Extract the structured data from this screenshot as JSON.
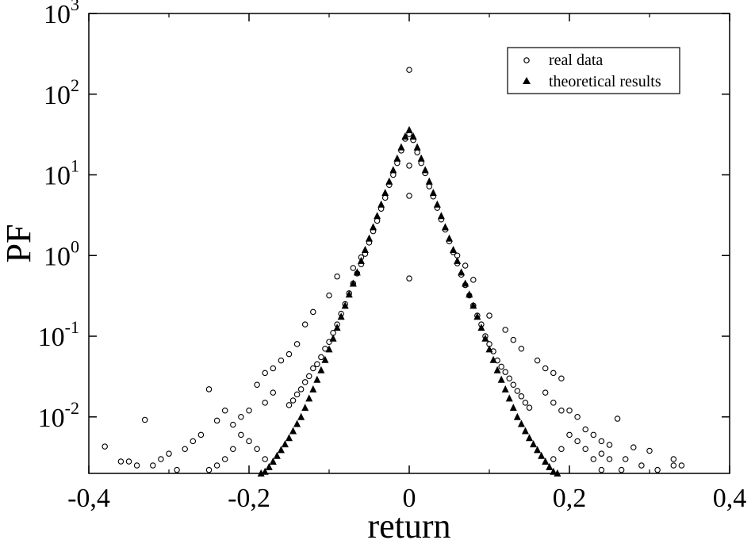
{
  "chart_data": {
    "type": "scatter",
    "xlabel": "return",
    "ylabel": "PF",
    "xlim": [
      -0.4,
      0.4
    ],
    "ylim_log10": [
      -2.7,
      3
    ],
    "y_scale": "log",
    "x_ticks": [
      "-0,4",
      "-0,2",
      "0",
      "0,2",
      "0,4"
    ],
    "y_ticks": [
      {
        "base": "10",
        "exp": "-2"
      },
      {
        "base": "10",
        "exp": "-1"
      },
      {
        "base": "10",
        "exp": "0"
      },
      {
        "base": "10",
        "exp": "1"
      },
      {
        "base": "10",
        "exp": "2"
      },
      {
        "base": "10",
        "exp": "3"
      }
    ],
    "legend_position": "top-right",
    "series": [
      {
        "name": "real data",
        "marker": "open-circle",
        "points": [
          [
            0.0,
            200
          ],
          [
            0.0,
            32
          ],
          [
            0.0,
            13
          ],
          [
            0.0,
            5.5
          ],
          [
            0.0,
            0.52
          ],
          [
            -0.005,
            28
          ],
          [
            0.005,
            27
          ],
          [
            -0.01,
            20
          ],
          [
            0.01,
            19
          ],
          [
            -0.015,
            14
          ],
          [
            0.015,
            14
          ],
          [
            -0.02,
            10
          ],
          [
            0.02,
            10.5
          ],
          [
            -0.025,
            7.5
          ],
          [
            0.025,
            7.2
          ],
          [
            -0.03,
            5.2
          ],
          [
            0.03,
            5.4
          ],
          [
            -0.035,
            3.8
          ],
          [
            0.035,
            3.9
          ],
          [
            -0.04,
            2.7
          ],
          [
            0.04,
            2.8
          ],
          [
            -0.045,
            2.0
          ],
          [
            0.045,
            2.1
          ],
          [
            -0.05,
            1.45
          ],
          [
            0.05,
            1.5
          ],
          [
            -0.055,
            1.05
          ],
          [
            0.055,
            1.1
          ],
          [
            -0.06,
            0.78
          ],
          [
            0.06,
            0.8
          ],
          [
            -0.065,
            0.6
          ],
          [
            0.065,
            0.58
          ],
          [
            -0.07,
            0.45
          ],
          [
            0.07,
            0.43
          ],
          [
            -0.075,
            0.34
          ],
          [
            0.075,
            0.32
          ],
          [
            -0.08,
            0.25
          ],
          [
            0.08,
            0.24
          ],
          [
            -0.085,
            0.19
          ],
          [
            0.085,
            0.18
          ],
          [
            -0.09,
            0.14
          ],
          [
            0.09,
            0.14
          ],
          [
            -0.095,
            0.11
          ],
          [
            0.095,
            0.1
          ],
          [
            -0.1,
            0.085
          ],
          [
            0.1,
            0.08
          ],
          [
            -0.105,
            0.07
          ],
          [
            0.105,
            0.065
          ],
          [
            -0.11,
            0.055
          ],
          [
            0.11,
            0.05
          ],
          [
            -0.115,
            0.045
          ],
          [
            0.115,
            0.042
          ],
          [
            -0.12,
            0.04
          ],
          [
            0.12,
            0.036
          ],
          [
            -0.125,
            0.032
          ],
          [
            0.125,
            0.03
          ],
          [
            -0.13,
            0.027
          ],
          [
            0.13,
            0.025
          ],
          [
            -0.135,
            0.022
          ],
          [
            0.135,
            0.021
          ],
          [
            -0.14,
            0.019
          ],
          [
            0.14,
            0.018
          ],
          [
            -0.145,
            0.016
          ],
          [
            0.145,
            0.015
          ],
          [
            -0.15,
            0.014
          ],
          [
            0.15,
            0.013
          ],
          [
            -0.09,
            0.55
          ],
          [
            -0.1,
            0.32
          ],
          [
            -0.12,
            0.2
          ],
          [
            -0.13,
            0.14
          ],
          [
            -0.06,
            0.95
          ],
          [
            -0.07,
            0.7
          ],
          [
            0.08,
            0.5
          ],
          [
            0.1,
            0.18
          ],
          [
            0.12,
            0.12
          ],
          [
            0.13,
            0.09
          ],
          [
            0.07,
            0.75
          ],
          [
            0.06,
            1.0
          ],
          [
            -0.14,
            0.08
          ],
          [
            -0.16,
            0.05
          ],
          [
            -0.17,
            0.04
          ],
          [
            -0.15,
            0.06
          ],
          [
            0.14,
            0.07
          ],
          [
            0.16,
            0.05
          ],
          [
            -0.18,
            0.035
          ],
          [
            -0.19,
            0.025
          ],
          [
            0.17,
            0.04
          ],
          [
            0.18,
            0.035
          ],
          [
            0.19,
            0.03
          ],
          [
            -0.2,
            0.012
          ],
          [
            -0.21,
            0.01
          ],
          [
            -0.22,
            0.008
          ],
          [
            0.2,
            0.012
          ],
          [
            0.21,
            0.01
          ],
          [
            -0.17,
            0.02
          ],
          [
            -0.18,
            0.015
          ],
          [
            0.17,
            0.02
          ],
          [
            0.18,
            0.015
          ],
          [
            0.19,
            0.012
          ],
          [
            -0.25,
            0.022
          ],
          [
            -0.23,
            0.012
          ],
          [
            -0.24,
            0.009
          ],
          [
            -0.26,
            0.006
          ],
          [
            -0.27,
            0.005
          ],
          [
            0.22,
            0.007
          ],
          [
            0.23,
            0.006
          ],
          [
            0.24,
            0.005
          ],
          [
            0.25,
            0.0045
          ],
          [
            0.26,
            0.0095
          ],
          [
            -0.28,
            0.004
          ],
          [
            -0.3,
            0.0035
          ],
          [
            -0.31,
            0.003
          ],
          [
            -0.33,
            0.0092
          ],
          [
            -0.38,
            0.0043
          ],
          [
            -0.35,
            0.0028
          ],
          [
            -0.36,
            0.0028
          ],
          [
            -0.32,
            0.0025
          ],
          [
            -0.29,
            0.0022
          ],
          [
            -0.34,
            0.0025
          ],
          [
            0.27,
            0.003
          ],
          [
            0.28,
            0.0042
          ],
          [
            0.3,
            0.0038
          ],
          [
            0.33,
            0.003
          ],
          [
            0.33,
            0.0025
          ],
          [
            0.34,
            0.0025
          ],
          [
            0.29,
            0.0025
          ],
          [
            0.31,
            0.0022
          ],
          [
            0.265,
            0.0022
          ],
          [
            0.25,
            0.003
          ],
          [
            0.24,
            0.0035
          ],
          [
            -0.21,
            0.006
          ],
          [
            -0.2,
            0.005
          ],
          [
            -0.19,
            0.004
          ],
          [
            -0.22,
            0.004
          ],
          [
            -0.23,
            0.003
          ],
          [
            0.2,
            0.006
          ],
          [
            0.21,
            0.005
          ],
          [
            0.22,
            0.004
          ],
          [
            0.19,
            0.004
          ],
          [
            0.23,
            0.003
          ],
          [
            -0.24,
            0.0025
          ],
          [
            -0.25,
            0.0022
          ],
          [
            -0.18,
            0.003
          ],
          [
            0.18,
            0.003
          ],
          [
            0.24,
            0.0022
          ]
        ]
      },
      {
        "name": "theoretical results",
        "marker": "filled-triangle",
        "points": [
          [
            0.0,
            36
          ],
          [
            -0.005,
            30
          ],
          [
            0.005,
            30
          ],
          [
            -0.01,
            22
          ],
          [
            0.01,
            22
          ],
          [
            -0.015,
            16
          ],
          [
            0.015,
            16
          ],
          [
            -0.02,
            11.5
          ],
          [
            0.02,
            11.5
          ],
          [
            -0.025,
            8.3
          ],
          [
            0.025,
            8.3
          ],
          [
            -0.03,
            6.0
          ],
          [
            0.03,
            6.0
          ],
          [
            -0.035,
            4.3
          ],
          [
            0.035,
            4.3
          ],
          [
            -0.04,
            3.1
          ],
          [
            0.04,
            3.1
          ],
          [
            -0.045,
            2.25
          ],
          [
            0.045,
            2.25
          ],
          [
            -0.05,
            1.63
          ],
          [
            0.05,
            1.63
          ],
          [
            -0.055,
            1.18
          ],
          [
            0.055,
            1.18
          ],
          [
            -0.06,
            0.86
          ],
          [
            0.06,
            0.86
          ],
          [
            -0.065,
            0.62
          ],
          [
            0.065,
            0.62
          ],
          [
            -0.07,
            0.45
          ],
          [
            0.07,
            0.45
          ],
          [
            -0.075,
            0.33
          ],
          [
            0.075,
            0.33
          ],
          [
            -0.08,
            0.24
          ],
          [
            0.08,
            0.24
          ],
          [
            -0.085,
            0.175
          ],
          [
            0.085,
            0.175
          ],
          [
            -0.09,
            0.128
          ],
          [
            0.09,
            0.128
          ],
          [
            -0.095,
            0.094
          ],
          [
            0.095,
            0.094
          ],
          [
            -0.1,
            0.069
          ],
          [
            0.1,
            0.069
          ],
          [
            -0.105,
            0.051
          ],
          [
            0.105,
            0.051
          ],
          [
            -0.11,
            0.038
          ],
          [
            0.11,
            0.038
          ],
          [
            -0.115,
            0.029
          ],
          [
            0.115,
            0.029
          ],
          [
            -0.12,
            0.022
          ],
          [
            0.12,
            0.022
          ],
          [
            -0.125,
            0.017
          ],
          [
            0.125,
            0.017
          ],
          [
            -0.13,
            0.013
          ],
          [
            0.13,
            0.013
          ],
          [
            -0.135,
            0.01
          ],
          [
            0.135,
            0.01
          ],
          [
            -0.14,
            0.0082
          ],
          [
            0.14,
            0.0082
          ],
          [
            -0.145,
            0.0067
          ],
          [
            0.145,
            0.0067
          ],
          [
            -0.15,
            0.0055
          ],
          [
            0.15,
            0.0055
          ],
          [
            -0.155,
            0.0046
          ],
          [
            0.155,
            0.0046
          ],
          [
            -0.16,
            0.0039
          ],
          [
            0.16,
            0.0039
          ],
          [
            -0.165,
            0.0033
          ],
          [
            0.165,
            0.0033
          ],
          [
            -0.17,
            0.0028
          ],
          [
            0.17,
            0.0028
          ],
          [
            -0.175,
            0.0024
          ],
          [
            0.175,
            0.0024
          ],
          [
            -0.18,
            0.0021
          ],
          [
            0.18,
            0.0021
          ],
          [
            -0.185,
            0.002
          ],
          [
            0.185,
            0.002
          ]
        ]
      }
    ]
  }
}
